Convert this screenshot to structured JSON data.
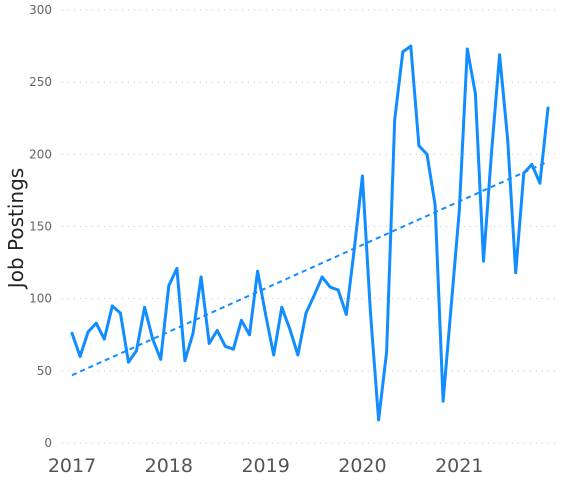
{
  "chart_data": {
    "type": "line",
    "title": "",
    "xlabel": "",
    "ylabel": "Job Postings",
    "ylim": [
      0,
      300
    ],
    "y_ticks": [
      0,
      50,
      100,
      150,
      200,
      250,
      300
    ],
    "x_ticks": [
      "2017",
      "2018",
      "2019",
      "2020",
      "2021"
    ],
    "grid": "horizontal dotted",
    "legend": "none",
    "colors": {
      "series": "#118DFF",
      "trend": "#118DFF",
      "grid": "#C8C8C8",
      "text": "#666666"
    },
    "series": [
      {
        "x": [
          "2017-01",
          "2017-02",
          "2017-03",
          "2017-04",
          "2017-05",
          "2017-06",
          "2017-07",
          "2017-08",
          "2017-09",
          "2017-10",
          "2017-11",
          "2017-12",
          "2018-01",
          "2018-02",
          "2018-03",
          "2018-04",
          "2018-05",
          "2018-06",
          "2018-07",
          "2018-08",
          "2018-09",
          "2018-10",
          "2018-11",
          "2018-12",
          "2019-01",
          "2019-02",
          "2019-03",
          "2019-04",
          "2019-05",
          "2019-06",
          "2019-07",
          "2019-08",
          "2019-09",
          "2019-10",
          "2019-11",
          "2019-12",
          "2020-01",
          "2020-02",
          "2020-03",
          "2020-04",
          "2020-05",
          "2020-06",
          "2020-07",
          "2020-08",
          "2020-09",
          "2020-10",
          "2020-11",
          "2020-12",
          "2021-01",
          "2021-02",
          "2021-03",
          "2021-04",
          "2021-05",
          "2021-06",
          "2021-07",
          "2021-08",
          "2021-09",
          "2021-10",
          "2021-11",
          "2021-12"
        ],
        "values": [
          76,
          60,
          77,
          83,
          72,
          95,
          90,
          56,
          64,
          94,
          72,
          58,
          109,
          121,
          57,
          76,
          115,
          69,
          78,
          67,
          65,
          85,
          75,
          119,
          89,
          61,
          94,
          79,
          61,
          90,
          102,
          115,
          108,
          106,
          89,
          135,
          185,
          90,
          16,
          63,
          224,
          271,
          275,
          206,
          200,
          165,
          29,
          95,
          161,
          273,
          242,
          126,
          201,
          269,
          210,
          118,
          187,
          193,
          180,
          232
        ]
      },
      {
        "kind": "trend",
        "x": [
          "2017-01",
          "2021-12"
        ],
        "values": [
          47,
          195
        ]
      }
    ]
  }
}
